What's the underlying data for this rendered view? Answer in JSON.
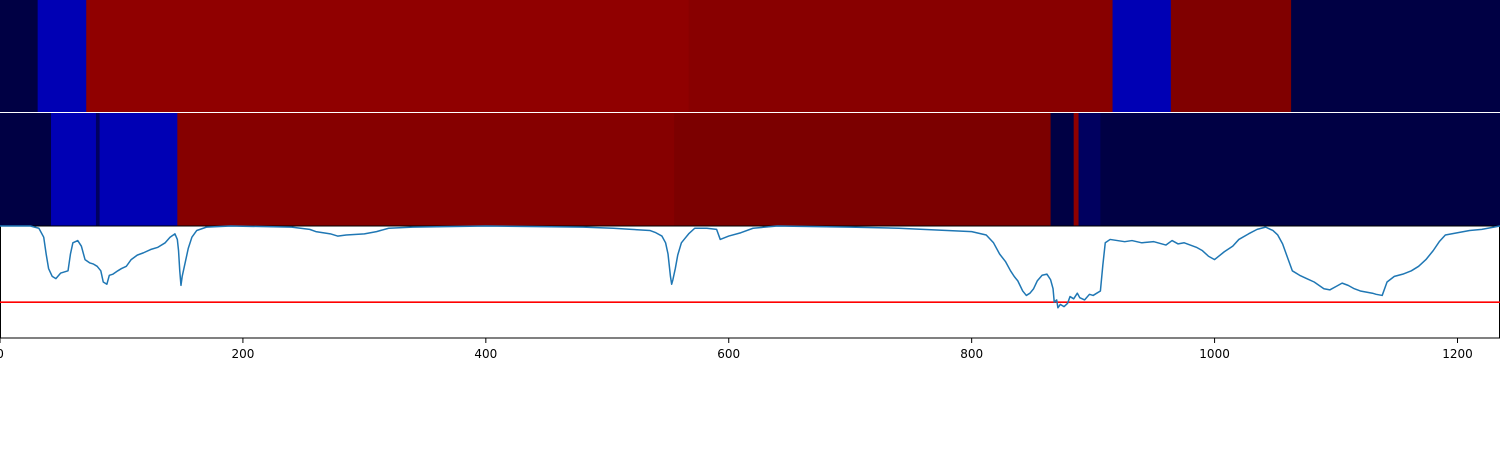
{
  "chart_data": {
    "type": "heatmap+line",
    "xlim": [
      0,
      1235
    ],
    "xticks": [
      0,
      200,
      400,
      600,
      800,
      1000,
      1200
    ],
    "xtick_labels": [
      "0",
      "200",
      "400",
      "600",
      "800",
      "1000",
      "1200"
    ],
    "grid": false,
    "legend": "none",
    "strips": [
      {
        "segments": [
          {
            "start": 0,
            "end": 31,
            "color": "#000044"
          },
          {
            "start": 31,
            "end": 71,
            "color": "#0000b4"
          },
          {
            "start": 71,
            "end": 567,
            "color": "#900000"
          },
          {
            "start": 567,
            "end": 916,
            "color": "#880000"
          },
          {
            "start": 916,
            "end": 964,
            "color": "#0000b4"
          },
          {
            "start": 964,
            "end": 1063,
            "color": "#800000"
          },
          {
            "start": 1063,
            "end": 1235,
            "color": "#000044"
          }
        ]
      },
      {
        "segments": [
          {
            "start": 0,
            "end": 42,
            "color": "#000044"
          },
          {
            "start": 42,
            "end": 79,
            "color": "#0000b4"
          },
          {
            "start": 79,
            "end": 82,
            "color": "#000060"
          },
          {
            "start": 82,
            "end": 146,
            "color": "#0000b4"
          },
          {
            "start": 146,
            "end": 555,
            "color": "#860000"
          },
          {
            "start": 555,
            "end": 865,
            "color": "#7c0000"
          },
          {
            "start": 865,
            "end": 884,
            "color": "#000044"
          },
          {
            "start": 884,
            "end": 888,
            "color": "#900000"
          },
          {
            "start": 888,
            "end": 906,
            "color": "#000060"
          },
          {
            "start": 906,
            "end": 1235,
            "color": "#000044"
          }
        ]
      }
    ],
    "line": {
      "color": "#1f77b4",
      "ylim": [
        -1.0,
        0.0
      ],
      "points": [
        [
          0,
          0.0
        ],
        [
          25,
          0.0
        ],
        [
          32,
          -0.02
        ],
        [
          36,
          -0.1
        ],
        [
          38,
          -0.25
        ],
        [
          40,
          -0.38
        ],
        [
          43,
          -0.45
        ],
        [
          46,
          -0.47
        ],
        [
          50,
          -0.42
        ],
        [
          56,
          -0.4
        ],
        [
          58,
          -0.25
        ],
        [
          60,
          -0.15
        ],
        [
          64,
          -0.13
        ],
        [
          67,
          -0.18
        ],
        [
          70,
          -0.3
        ],
        [
          74,
          -0.33
        ],
        [
          77,
          -0.34
        ],
        [
          80,
          -0.36
        ],
        [
          83,
          -0.4
        ],
        [
          85,
          -0.5
        ],
        [
          88,
          -0.52
        ],
        [
          90,
          -0.44
        ],
        [
          93,
          -0.43
        ],
        [
          97,
          -0.4
        ],
        [
          100,
          -0.38
        ],
        [
          104,
          -0.36
        ],
        [
          108,
          -0.3
        ],
        [
          113,
          -0.26
        ],
        [
          118,
          -0.24
        ],
        [
          124,
          -0.21
        ],
        [
          130,
          -0.19
        ],
        [
          136,
          -0.15
        ],
        [
          140,
          -0.1
        ],
        [
          144,
          -0.07
        ],
        [
          146,
          -0.12
        ],
        [
          147,
          -0.22
        ],
        [
          148,
          -0.4
        ],
        [
          149,
          -0.53
        ],
        [
          150,
          -0.45
        ],
        [
          152,
          -0.35
        ],
        [
          155,
          -0.2
        ],
        [
          158,
          -0.1
        ],
        [
          162,
          -0.04
        ],
        [
          170,
          -0.01
        ],
        [
          190,
          0.0
        ],
        [
          240,
          -0.01
        ],
        [
          255,
          -0.03
        ],
        [
          260,
          -0.05
        ],
        [
          266,
          -0.06
        ],
        [
          272,
          -0.07
        ],
        [
          278,
          -0.09
        ],
        [
          285,
          -0.08
        ],
        [
          300,
          -0.07
        ],
        [
          310,
          -0.05
        ],
        [
          320,
          -0.02
        ],
        [
          340,
          -0.01
        ],
        [
          400,
          0.0
        ],
        [
          480,
          -0.01
        ],
        [
          505,
          -0.02
        ],
        [
          520,
          -0.03
        ],
        [
          535,
          -0.04
        ],
        [
          540,
          -0.06
        ],
        [
          545,
          -0.09
        ],
        [
          548,
          -0.15
        ],
        [
          550,
          -0.25
        ],
        [
          552,
          -0.45
        ],
        [
          553,
          -0.52
        ],
        [
          554,
          -0.48
        ],
        [
          556,
          -0.38
        ],
        [
          558,
          -0.26
        ],
        [
          561,
          -0.15
        ],
        [
          564,
          -0.11
        ],
        [
          567,
          -0.07
        ],
        [
          572,
          -0.02
        ],
        [
          582,
          -0.02
        ],
        [
          590,
          -0.03
        ],
        [
          593,
          -0.12
        ],
        [
          600,
          -0.09
        ],
        [
          610,
          -0.06
        ],
        [
          620,
          -0.02
        ],
        [
          640,
          0.0
        ],
        [
          700,
          -0.01
        ],
        [
          740,
          -0.02
        ],
        [
          760,
          -0.03
        ],
        [
          780,
          -0.04
        ],
        [
          800,
          -0.05
        ],
        [
          812,
          -0.08
        ],
        [
          818,
          -0.15
        ],
        [
          823,
          -0.25
        ],
        [
          828,
          -0.32
        ],
        [
          832,
          -0.4
        ],
        [
          835,
          -0.45
        ],
        [
          838,
          -0.49
        ],
        [
          842,
          -0.58
        ],
        [
          845,
          -0.62
        ],
        [
          848,
          -0.6
        ],
        [
          851,
          -0.56
        ],
        [
          854,
          -0.49
        ],
        [
          858,
          -0.44
        ],
        [
          862,
          -0.43
        ],
        [
          865,
          -0.48
        ],
        [
          867,
          -0.56
        ],
        [
          868,
          -0.68
        ],
        [
          870,
          -0.66
        ],
        [
          871,
          -0.73
        ],
        [
          873,
          -0.7
        ],
        [
          876,
          -0.72
        ],
        [
          879,
          -0.69
        ],
        [
          881,
          -0.63
        ],
        [
          884,
          -0.65
        ],
        [
          887,
          -0.6
        ],
        [
          889,
          -0.64
        ],
        [
          893,
          -0.66
        ],
        [
          897,
          -0.61
        ],
        [
          900,
          -0.62
        ],
        [
          903,
          -0.6
        ],
        [
          906,
          -0.58
        ],
        [
          908,
          -0.35
        ],
        [
          910,
          -0.15
        ],
        [
          914,
          -0.12
        ],
        [
          920,
          -0.13
        ],
        [
          926,
          -0.14
        ],
        [
          932,
          -0.13
        ],
        [
          940,
          -0.15
        ],
        [
          950,
          -0.14
        ],
        [
          960,
          -0.17
        ],
        [
          965,
          -0.13
        ],
        [
          970,
          -0.16
        ],
        [
          975,
          -0.15
        ],
        [
          980,
          -0.17
        ],
        [
          985,
          -0.19
        ],
        [
          990,
          -0.22
        ],
        [
          995,
          -0.27
        ],
        [
          1000,
          -0.3
        ],
        [
          1008,
          -0.23
        ],
        [
          1015,
          -0.18
        ],
        [
          1020,
          -0.12
        ],
        [
          1028,
          -0.07
        ],
        [
          1035,
          -0.03
        ],
        [
          1042,
          -0.01
        ],
        [
          1048,
          -0.04
        ],
        [
          1052,
          -0.08
        ],
        [
          1056,
          -0.16
        ],
        [
          1060,
          -0.28
        ],
        [
          1064,
          -0.4
        ],
        [
          1070,
          -0.44
        ],
        [
          1076,
          -0.47
        ],
        [
          1082,
          -0.5
        ],
        [
          1086,
          -0.53
        ],
        [
          1090,
          -0.56
        ],
        [
          1095,
          -0.57
        ],
        [
          1100,
          -0.54
        ],
        [
          1105,
          -0.51
        ],
        [
          1110,
          -0.53
        ],
        [
          1115,
          -0.56
        ],
        [
          1120,
          -0.58
        ],
        [
          1125,
          -0.59
        ],
        [
          1130,
          -0.6
        ],
        [
          1133,
          -0.61
        ],
        [
          1138,
          -0.62
        ],
        [
          1142,
          -0.5
        ],
        [
          1148,
          -0.45
        ],
        [
          1155,
          -0.43
        ],
        [
          1162,
          -0.4
        ],
        [
          1168,
          -0.36
        ],
        [
          1174,
          -0.3
        ],
        [
          1180,
          -0.22
        ],
        [
          1185,
          -0.14
        ],
        [
          1190,
          -0.08
        ],
        [
          1200,
          -0.06
        ],
        [
          1210,
          -0.04
        ],
        [
          1220,
          -0.03
        ],
        [
          1235,
          0.0
        ]
      ]
    },
    "threshold": {
      "value": -0.68,
      "color": "#ff0000"
    }
  }
}
